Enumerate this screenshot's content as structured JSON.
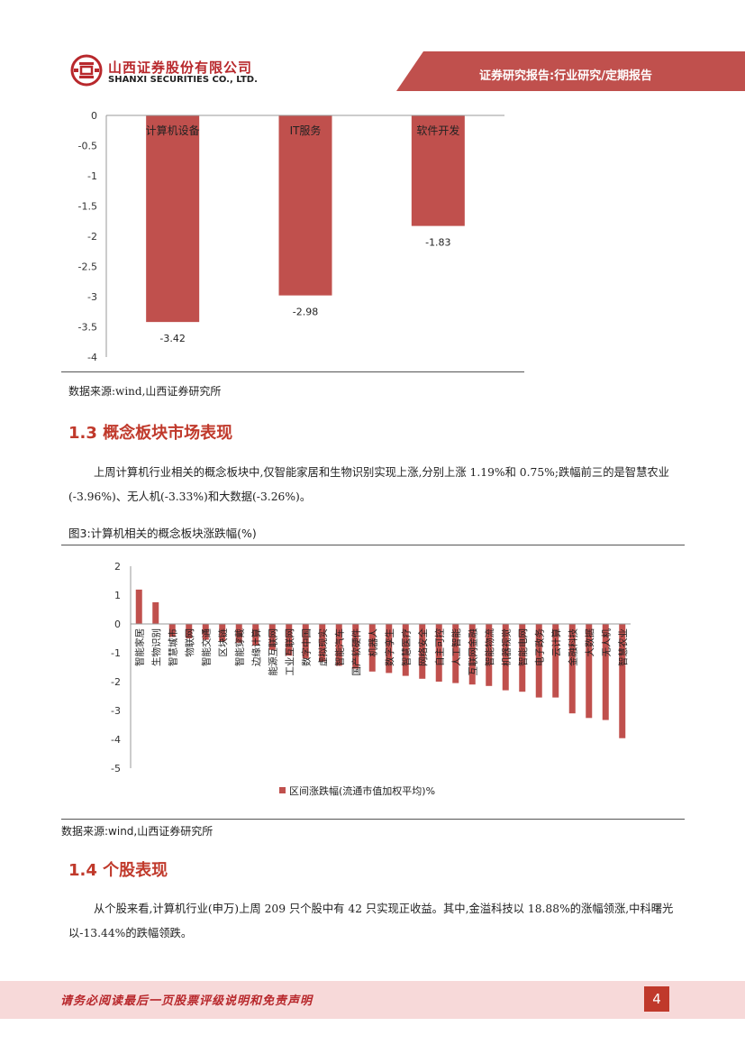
{
  "header": {
    "company_cn": "山西证券股份有限公司",
    "company_en": "SHANXI SECURITIES CO., LTD.",
    "report_tag": "证券研究报告:行业研究/定期报告",
    "brand_color": "#c0392b"
  },
  "chart_data": [
    {
      "type": "bar",
      "title": "",
      "categories": [
        "计算机设备",
        "IT服务",
        "软件开发"
      ],
      "values": [
        -3.42,
        -2.98,
        -1.83
      ],
      "data_labels": [
        "-3.42",
        "-2.98",
        "-1.83"
      ],
      "yticks": [
        "0",
        "-0.5",
        "-1",
        "-1.5",
        "-2",
        "-2.5",
        "-3",
        "-3.5",
        "-4"
      ],
      "ylim": [
        -4,
        0
      ],
      "color": "#c0504d"
    },
    {
      "type": "bar",
      "title": "图3:计算机相关的概念板块涨跌幅(%)",
      "categories": [
        "智能家居",
        "生物识别",
        "智慧城市",
        "物联网",
        "智能交通",
        "区块链",
        "智能穿戴",
        "边缘计算",
        "能源互联网",
        "工业互联网",
        "数字中国",
        "虚拟现实",
        "智能汽车",
        "国产软硬件",
        "机器人",
        "数字孪生",
        "智慧医疗",
        "网络安全",
        "自主可控",
        "人工智能",
        "互联网金融",
        "智能物流",
        "机器视觉",
        "智能电网",
        "电子政务",
        "云计算",
        "金融科技",
        "大数据",
        "无人机",
        "智慧农业"
      ],
      "values": [
        1.19,
        0.75,
        -0.45,
        -0.5,
        -0.55,
        -0.6,
        -0.65,
        -0.75,
        -0.9,
        -1.1,
        -1.2,
        -1.3,
        -1.45,
        -1.55,
        -1.65,
        -1.7,
        -1.8,
        -1.9,
        -2.0,
        -2.05,
        -2.1,
        -2.15,
        -2.3,
        -2.35,
        -2.55,
        -2.55,
        -3.1,
        -3.26,
        -3.33,
        -3.96
      ],
      "yticks": [
        "2",
        "1",
        "0",
        "-1",
        "-2",
        "-3",
        "-4",
        "-5"
      ],
      "ylim": [
        -5,
        2
      ],
      "legend": "区间涨跌幅(流通市值加权平均)%",
      "legend_position": "bottom",
      "color": "#c0504d"
    }
  ],
  "chart1_source": "数据来源:wind,山西证券研究所",
  "section_13": {
    "title": "1.3 概念板块市场表现",
    "paragraph": "上周计算机行业相关的概念板块中,仅智能家居和生物识别实现上涨,分别上涨 1.19%和 0.75%;跌幅前三的是智慧农业(-3.96%)、无人机(-3.33%)和大数据(-3.26%)。"
  },
  "figure3": {
    "title": "图3:计算机相关的概念板块涨跌幅(%)",
    "source": "数据来源:wind,山西证券研究所"
  },
  "section_14": {
    "title": "1.4 个股表现",
    "paragraph": "从个股来看,计算机行业(申万)上周 209 只个股中有 42 只实现正收益。其中,金溢科技以 18.88%的涨幅领涨,中科曙光以-13.44%的跌幅领跌。"
  },
  "footer": {
    "disclaimer": "请务必阅读最后一页股票评级说明和免责声明",
    "page_number": "4"
  }
}
